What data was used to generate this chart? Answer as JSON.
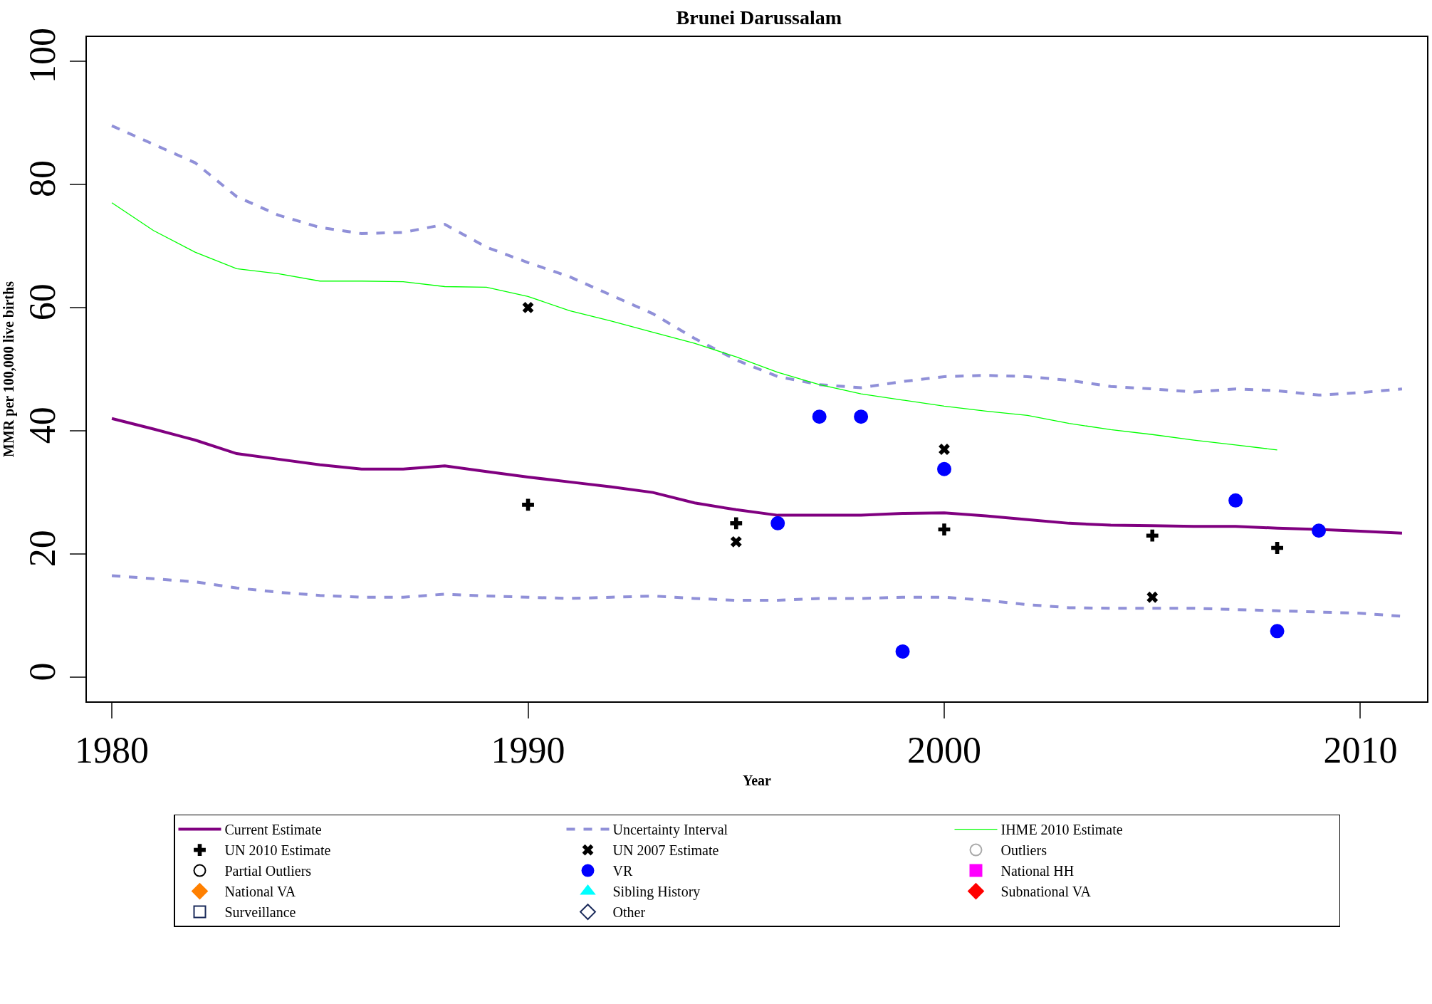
{
  "chart_data": {
    "type": "line",
    "title": "Brunei Darussalam",
    "xlabel": "Year",
    "ylabel": "MMR per 100,000 live births",
    "xlim": [
      1979.4,
      2011.6
    ],
    "ylim": [
      -3.9,
      103.9
    ],
    "xticks": [
      1980,
      1990,
      2000,
      2010
    ],
    "yticks": [
      0,
      20,
      40,
      60,
      80,
      100
    ],
    "grid": false,
    "legend": "bottom",
    "series": [
      {
        "name": "Current Estimate",
        "color": "#800080",
        "line_style": "solid",
        "marker": "none",
        "x": [
          1980,
          1981,
          1982,
          1983,
          1984,
          1985,
          1986,
          1987,
          1988,
          1989,
          1990,
          1991,
          1992,
          1993,
          1994,
          1995,
          1996,
          1997,
          1998,
          1999,
          2000,
          2001,
          2002,
          2003,
          2004,
          2005,
          2006,
          2007,
          2008,
          2009,
          2010,
          2011
        ],
        "values": [
          42,
          40.3,
          38.5,
          36.3,
          35.4,
          34.5,
          33.8,
          33.8,
          34.3,
          33.4,
          32.5,
          31.7,
          30.9,
          30,
          28.3,
          27.2,
          26.3,
          26.3,
          26.3,
          26.6,
          26.7,
          26.2,
          25.6,
          25,
          24.7,
          24.6,
          24.5,
          24.5,
          24.2,
          24,
          23.7,
          23.4
        ]
      },
      {
        "name": "Uncertainty Interval",
        "color": "#9090d8",
        "line_style": "dashed",
        "marker": "none",
        "x": [
          1980,
          1981,
          1982,
          1983,
          1984,
          1985,
          1986,
          1987,
          1988,
          1989,
          1990,
          1991,
          1992,
          1993,
          1994,
          1995,
          1996,
          1997,
          1998,
          1999,
          2000,
          2001,
          2002,
          2003,
          2004,
          2005,
          2006,
          2007,
          2008,
          2009,
          2010,
          2011
        ],
        "values": [
          89.5,
          86.5,
          83.5,
          78,
          75,
          73,
          72,
          72.2,
          73.5,
          69.8,
          67.3,
          65,
          62,
          59,
          55,
          51.5,
          48.8,
          47.5,
          47,
          48,
          48.8,
          49,
          48.8,
          48.2,
          47.2,
          46.8,
          46.3,
          46.8,
          46.5,
          45.8,
          46.2,
          46.8
        ]
      },
      {
        "color": "#9090d8",
        "line_style": "dashed",
        "marker": "none",
        "x": [
          1980,
          1981,
          1982,
          1983,
          1984,
          1985,
          1986,
          1987,
          1988,
          1989,
          1990,
          1991,
          1992,
          1993,
          1994,
          1995,
          1996,
          1997,
          1998,
          1999,
          2000,
          2001,
          2002,
          2003,
          2004,
          2005,
          2006,
          2007,
          2008,
          2009,
          2010,
          2011
        ],
        "values": [
          16.5,
          16,
          15.5,
          14.5,
          13.8,
          13.3,
          13,
          13,
          13.5,
          13.2,
          13,
          12.8,
          13,
          13.2,
          12.8,
          12.5,
          12.5,
          12.8,
          12.8,
          13,
          13,
          12.5,
          11.8,
          11.3,
          11.2,
          11.2,
          11.2,
          11,
          10.8,
          10.6,
          10.4,
          9.9
        ]
      },
      {
        "name": "IHME 2010 Estimate",
        "color": "#00ff00",
        "line_style": "solid",
        "marker": "none",
        "x": [
          1980,
          1981,
          1982,
          1983,
          1984,
          1985,
          1986,
          1987,
          1988,
          1989,
          1990,
          1991,
          1992,
          1993,
          1994,
          1995,
          1996,
          1997,
          1998,
          1999,
          2000,
          2001,
          2002,
          2003,
          2004,
          2005,
          2006,
          2007,
          2008
        ],
        "values": [
          77,
          72.5,
          69,
          66.3,
          65.5,
          64.3,
          64.3,
          64.2,
          63.4,
          63.3,
          61.8,
          59.5,
          57.8,
          56,
          54.2,
          52,
          49.5,
          47.5,
          46,
          45,
          44,
          43.2,
          42.5,
          41.2,
          40.2,
          39.4,
          38.5,
          37.7,
          36.9
        ]
      },
      {
        "name": "UN 2010 Estimate",
        "type": "scatter",
        "color": "#000000",
        "marker": "cross",
        "x": [
          1990,
          1995,
          2000,
          2005,
          2008
        ],
        "values": [
          28,
          25,
          24,
          23,
          21
        ]
      },
      {
        "name": "UN 2007 Estimate",
        "type": "scatter",
        "color": "#000000",
        "marker": "x",
        "x": [
          1990,
          1995,
          2000,
          2005
        ],
        "values": [
          60,
          22,
          37,
          13
        ]
      },
      {
        "name": "Outliers",
        "type": "scatter",
        "color": "#aaaaaa",
        "marker": "circle-open"
      },
      {
        "name": "Partial Outliers",
        "type": "scatter",
        "color": "#000000",
        "marker": "circle-open"
      },
      {
        "name": "VR",
        "type": "scatter",
        "color": "#0000ff",
        "marker": "circle",
        "x": [
          1996,
          1997,
          1998,
          1999,
          2000,
          2007,
          2008,
          2009
        ],
        "values": [
          25,
          42.3,
          42.3,
          4.2,
          33.8,
          28.7,
          7.5,
          23.8
        ]
      },
      {
        "name": "National HH",
        "type": "scatter",
        "color": "#ff00ff",
        "marker": "square"
      },
      {
        "name": "National VA",
        "type": "scatter",
        "color": "#ff8000",
        "marker": "diamond"
      },
      {
        "name": "Sibling History",
        "type": "scatter",
        "color": "#00ffff",
        "marker": "triangle"
      },
      {
        "name": "Subnational VA",
        "type": "scatter",
        "color": "#ff0000",
        "marker": "diamond"
      },
      {
        "name": "Surveillance",
        "type": "scatter",
        "color": "#1a2a5a",
        "marker": "square-open"
      },
      {
        "name": "Other",
        "type": "scatter",
        "color": "#1a2a5a",
        "marker": "diamond-open"
      }
    ]
  }
}
